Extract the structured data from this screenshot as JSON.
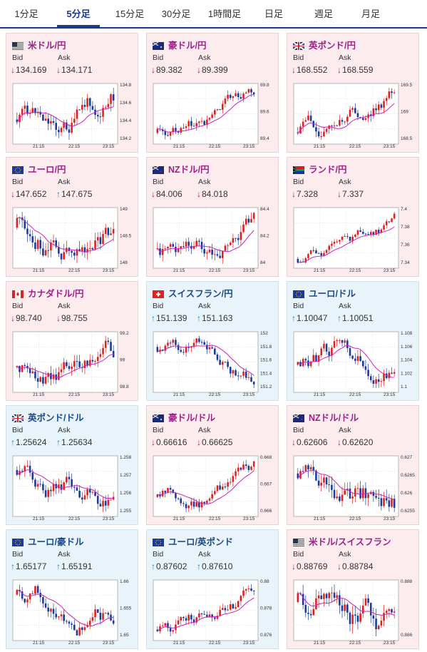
{
  "tabs": [
    {
      "label": "1分足"
    },
    {
      "label": "5分足",
      "active": true
    },
    {
      "label": "15分足"
    },
    {
      "label": "30分足"
    },
    {
      "label": "1時間足"
    },
    {
      "label": "日足"
    },
    {
      "label": "週足"
    },
    {
      "label": "月足"
    }
  ],
  "labels": {
    "bid": "Bid",
    "ask": "Ask"
  },
  "colors": {
    "accent": "#1a3a8c",
    "pink_card": "#fcecee",
    "blue_card": "#e8f4fa",
    "down": "#c02020",
    "up": "#1a7ad0",
    "candle_up": "#e02020",
    "candle_down": "#1a3a9c",
    "ma": "#d020c0",
    "ma2": "#20a0c0"
  },
  "cards": [
    {
      "pair": "米ドル/円",
      "flag": "us-flag-icon",
      "theme": "rd",
      "bid": "134.169",
      "ask": "134.171",
      "dir": "down",
      "yticks": [
        "134.8",
        "134.6",
        "134.4",
        "134.2"
      ],
      "xticks": [
        "21:15",
        "22:15",
        "23:15"
      ]
    },
    {
      "pair": "豪ドル/円",
      "flag": "au-flag-icon",
      "theme": "rd",
      "bid": "89.382",
      "ask": "89.399",
      "dir": "down",
      "yticks": [
        "89.8",
        "89.6",
        "89.4"
      ],
      "xticks": [
        "21:15",
        "22:15",
        "23:15"
      ]
    },
    {
      "pair": "英ポンド/円",
      "flag": "gb-flag-icon",
      "theme": "rd",
      "bid": "168.552",
      "ask": "168.559",
      "dir": "down",
      "yticks": [
        "169.5",
        "169",
        "168.5"
      ],
      "xticks": [
        "21:15",
        "22:15",
        "23:15"
      ]
    },
    {
      "pair": "ユーロ/円",
      "flag": "eu-flag-icon",
      "theme": "rd",
      "bid": "147.652",
      "ask": "147.675",
      "dir": "down",
      "askdir": "up",
      "yticks": [
        "149",
        "148.5",
        "148"
      ],
      "xticks": [
        "21:15",
        "22:15",
        "23:15"
      ]
    },
    {
      "pair": "NZドル/円",
      "flag": "nz-flag-icon",
      "theme": "rd",
      "bid": "84.006",
      "ask": "84.018",
      "dir": "down",
      "yticks": [
        "84.4",
        "84.2",
        "84"
      ],
      "xticks": [
        "21:15",
        "22:15",
        "23:15"
      ]
    },
    {
      "pair": "ランド/円",
      "flag": "za-flag-icon",
      "theme": "rd",
      "bid": "7.328",
      "ask": "7.337",
      "dir": "down",
      "yticks": [
        "7.4",
        "7.38",
        "7.36",
        "7.34"
      ],
      "xticks": [
        "21:15",
        "22:15",
        "23:15"
      ]
    },
    {
      "pair": "カナダドル/円",
      "flag": "ca-flag-icon",
      "theme": "rd",
      "bid": "98.740",
      "ask": "98.755",
      "dir": "down",
      "yticks": [
        "99.2",
        "99",
        "98.8"
      ],
      "xticks": [
        "21:15",
        "22:15",
        "23:15"
      ]
    },
    {
      "pair": "スイスフラン/円",
      "flag": "ch-flag-icon",
      "theme": "bl",
      "bid": "151.139",
      "ask": "151.163",
      "dir": "up",
      "yticks": [
        "152",
        "151.8",
        "151.6",
        "151.4",
        "151.2"
      ],
      "xticks": [
        "21:15",
        "22:15",
        "23:15"
      ]
    },
    {
      "pair": "ユーロ/ドル",
      "flag": "eu-flag-icon",
      "theme": "bl",
      "bid": "1.10047",
      "ask": "1.10051",
      "dir": "up",
      "yticks": [
        "1.108",
        "1.106",
        "1.104",
        "1.102",
        "1.1"
      ],
      "xticks": [
        "21:15",
        "22:15",
        "23:15"
      ]
    },
    {
      "pair": "英ポンド/ドル",
      "flag": "gb-flag-icon",
      "theme": "bl",
      "bid": "1.25624",
      "ask": "1.25634",
      "dir": "up",
      "yticks": [
        "1.258",
        "1.257",
        "1.256",
        "1.255"
      ],
      "xticks": [
        "21:15",
        "22:15",
        "23:15"
      ]
    },
    {
      "pair": "豪ドル/ドル",
      "flag": "au-flag-icon",
      "theme": "rd",
      "bid": "0.66616",
      "ask": "0.66625",
      "dir": "down",
      "yticks": [
        "0.668",
        "0.667",
        "0.666"
      ],
      "xticks": [
        "21:15",
        "22:15",
        "23:15"
      ]
    },
    {
      "pair": "NZドル/ドル",
      "flag": "nz-flag-icon",
      "theme": "rd",
      "bid": "0.62606",
      "ask": "0.62620",
      "dir": "down",
      "yticks": [
        "0.627",
        "0.6265",
        "0.626",
        "0.6255"
      ],
      "xticks": [
        "21:15",
        "22:15",
        "23:15"
      ]
    },
    {
      "pair": "ユーロ/豪ドル",
      "flag": "eu-flag-icon",
      "theme": "bl",
      "bid": "1.65177",
      "ask": "1.65191",
      "dir": "up",
      "yticks": [
        "1.66",
        "1.655",
        "1.65"
      ],
      "xticks": [
        "21:15",
        "22:15",
        "23:15"
      ]
    },
    {
      "pair": "ユーロ/英ポンド",
      "flag": "eu-flag-icon",
      "theme": "bl",
      "bid": "0.87602",
      "ask": "0.87610",
      "dir": "up",
      "yticks": [
        "0.88",
        "0.878",
        "0.876"
      ],
      "xticks": [
        "21:15",
        "22:15",
        "23:15"
      ]
    },
    {
      "pair": "米ドル/スイスフラン",
      "flag": "us-flag-icon",
      "theme": "rd",
      "bid": "0.88769",
      "ask": "0.88784",
      "dir": "down",
      "yticks": [
        "0.888",
        "0.886"
      ],
      "xticks": [
        "21:15",
        "22:15",
        "23:15"
      ]
    }
  ]
}
